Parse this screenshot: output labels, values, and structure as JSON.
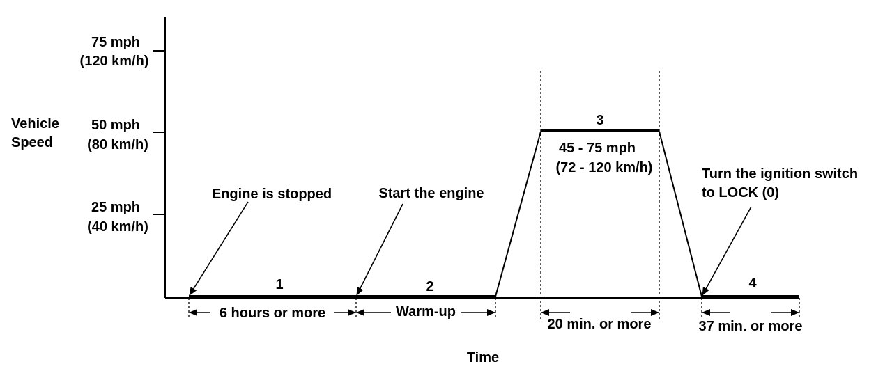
{
  "axes": {
    "y_title": [
      "Vehicle",
      "Speed"
    ],
    "x_title": "Time",
    "ticks": [
      {
        "mph": "75 mph",
        "kmh": "(120 km/h)"
      },
      {
        "mph": "50 mph",
        "kmh": "(80 km/h)"
      },
      {
        "mph": "25 mph",
        "kmh": "(40 km/h)"
      }
    ]
  },
  "phases": {
    "p1": "1",
    "p2": "2",
    "p3": "3",
    "p4": "4"
  },
  "annotations": {
    "engine_stopped": "Engine is stopped",
    "start_engine": "Start the engine",
    "ignition": [
      "Turn the ignition switch",
      "to LOCK (0)"
    ],
    "speed_range": [
      "45 - 75 mph",
      "(72 - 120 km/h)"
    ]
  },
  "durations": {
    "d1": "6 hours or more",
    "d2": "Warm-up",
    "d3": "20 min. or more",
    "d4": "37 min. or more"
  }
}
